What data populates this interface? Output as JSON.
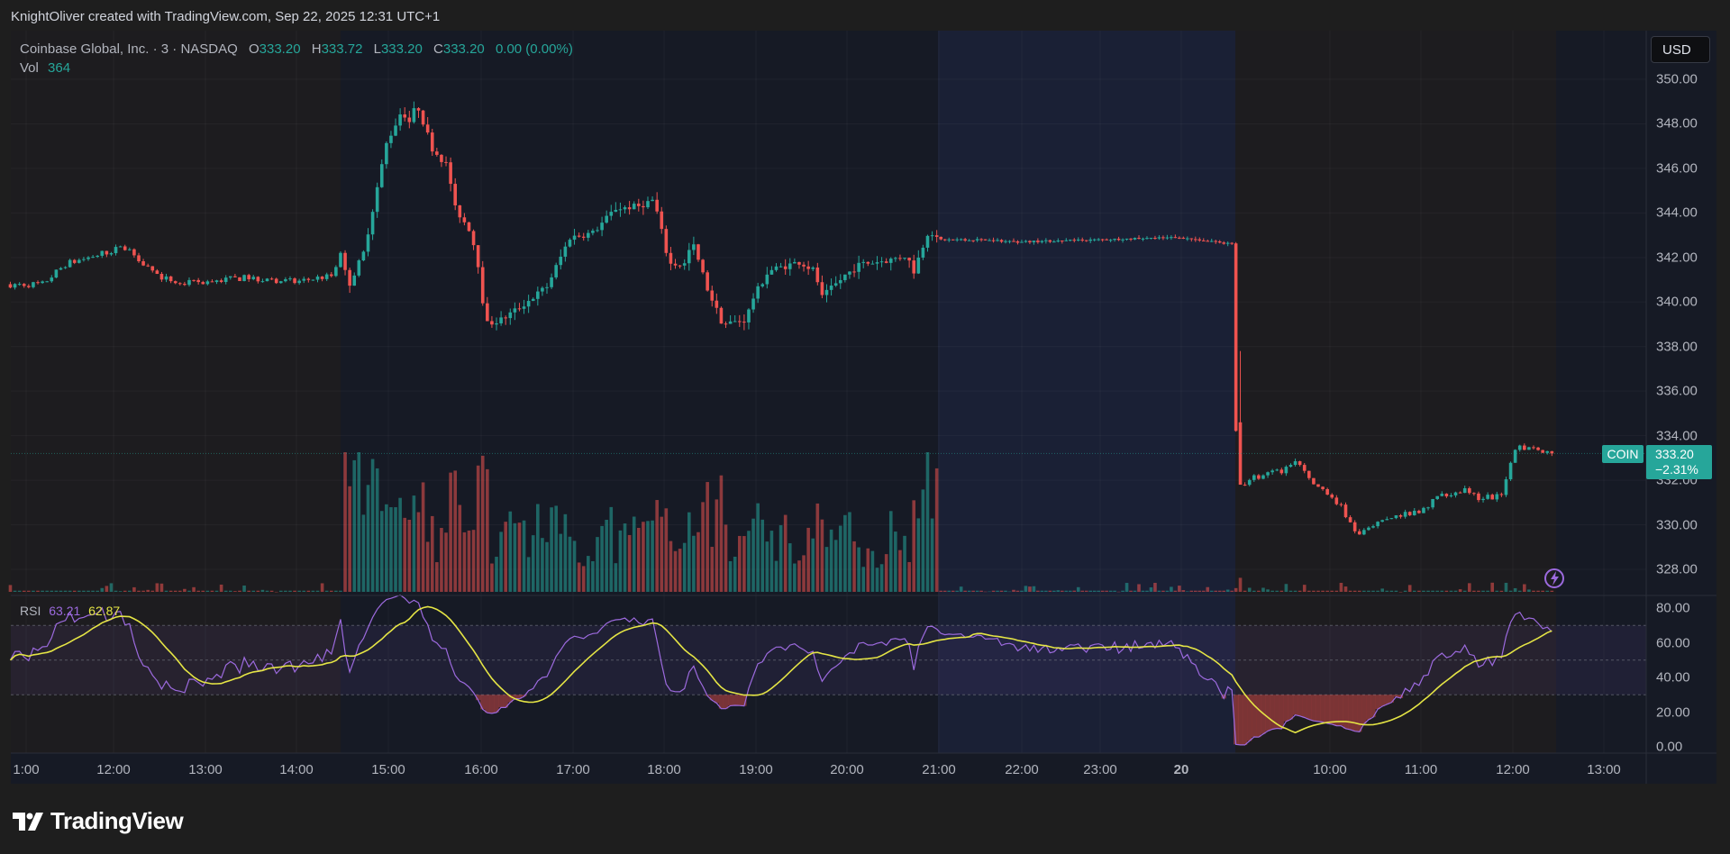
{
  "credit": "KnightOliver created with TradingView.com, Sep 22, 2025 12:31 UTC+1",
  "symbol": {
    "name": "Coinbase Global, Inc.",
    "interval": "3",
    "exchange": "NASDAQ",
    "ticker": "COIN"
  },
  "ohlc": {
    "o_label": "O",
    "o": "333.20",
    "h_label": "H",
    "h": "333.72",
    "l_label": "L",
    "l": "333.20",
    "c_label": "C",
    "c": "333.20",
    "change": "0.00 (0.00%)"
  },
  "volume": {
    "label": "Vol",
    "value": "364"
  },
  "currency": "USD",
  "last_price": {
    "price": "333.20",
    "change_pct": "−2.31%"
  },
  "rsi": {
    "label": "RSI",
    "value": "63.21",
    "ma_value": "62.87"
  },
  "colors": {
    "up": "#26a69a",
    "down": "#ef5350",
    "rsi": "#9c6ade",
    "rsi_ma": "#e5e545",
    "background": "#161a25"
  },
  "logo": "TradingView",
  "chart_data": [
    {
      "type": "candlestick",
      "title": "Coinbase Global, Inc. · 3 · NASDAQ",
      "ylim": [
        327,
        351
      ],
      "price_ticks": [
        "350.00",
        "348.00",
        "346.00",
        "344.00",
        "342.00",
        "340.00",
        "338.00",
        "336.00",
        "334.00",
        "332.00",
        "330.00",
        "328.00"
      ],
      "time_ticks": [
        "1:00",
        "12:00",
        "13:00",
        "14:00",
        "15:00",
        "16:00",
        "17:00",
        "18:00",
        "19:00",
        "20:00",
        "21:00",
        "22:00",
        "23:00",
        "20",
        "10:00",
        "11:00",
        "12:00",
        "13:00"
      ],
      "sessions": [
        {
          "name": "pre-market",
          "from": "10:50",
          "to": "14:30"
        },
        {
          "name": "regular",
          "from": "14:30",
          "to": "21:00"
        },
        {
          "name": "post-market",
          "from": "21:00",
          "to": "00:40"
        },
        {
          "name": "pre-market",
          "from": "09:00",
          "to": "12:30"
        }
      ],
      "approx_close_path": [
        [
          "19 10:50",
          340.8
        ],
        [
          "19 11:15",
          340.8
        ],
        [
          "19 11:30",
          341.7
        ],
        [
          "19 11:45",
          342.0
        ],
        [
          "19 12:00",
          342.3
        ],
        [
          "19 12:10",
          342.5
        ],
        [
          "19 12:30",
          341.2
        ],
        [
          "19 12:45",
          340.8
        ],
        [
          "19 13:00",
          340.9
        ],
        [
          "19 13:30",
          341.1
        ],
        [
          "19 14:00",
          340.9
        ],
        [
          "19 14:25",
          341.2
        ],
        [
          "19 14:30",
          342.3
        ],
        [
          "19 14:35",
          340.7
        ],
        [
          "19 14:45",
          342.2
        ],
        [
          "19 15:00",
          347.1
        ],
        [
          "19 15:10",
          348.6
        ],
        [
          "19 15:15",
          348.1
        ],
        [
          "19 15:20",
          348.9
        ],
        [
          "19 15:30",
          346.9
        ],
        [
          "19 15:40",
          346.1
        ],
        [
          "19 15:45",
          344.2
        ],
        [
          "19 15:55",
          343.2
        ],
        [
          "19 16:00",
          341.7
        ],
        [
          "19 16:05",
          339.0
        ],
        [
          "19 16:15",
          339.2
        ],
        [
          "19 16:30",
          339.9
        ],
        [
          "19 16:45",
          340.7
        ],
        [
          "19 17:00",
          342.9
        ],
        [
          "19 17:15",
          343.1
        ],
        [
          "19 17:30",
          344.2
        ],
        [
          "19 17:45",
          344.3
        ],
        [
          "19 17:55",
          344.6
        ],
        [
          "19 18:05",
          341.7
        ],
        [
          "19 18:15",
          341.7
        ],
        [
          "19 18:20",
          342.7
        ],
        [
          "19 18:30",
          340.6
        ],
        [
          "19 18:40",
          339.0
        ],
        [
          "19 18:55",
          339.2
        ],
        [
          "19 19:00",
          340.2
        ],
        [
          "19 19:10",
          341.4
        ],
        [
          "19 19:30",
          341.8
        ],
        [
          "19 19:40",
          341.4
        ],
        [
          "19 19:45",
          340.2
        ],
        [
          "19 20:00",
          341.2
        ],
        [
          "19 20:10",
          341.7
        ],
        [
          "19 20:30",
          341.9
        ],
        [
          "19 20:40",
          342.1
        ],
        [
          "19 20:45",
          341.4
        ],
        [
          "19 20:55",
          343.3
        ],
        [
          "19 21:00",
          342.8
        ],
        [
          "19 21:30",
          342.8
        ],
        [
          "19 22:00",
          342.7
        ],
        [
          "19 23:00",
          342.8
        ],
        [
          "20 00:00",
          342.9
        ],
        [
          "20 00:40",
          342.6
        ],
        [
          "20 09:00",
          334.2
        ],
        [
          "20 09:03",
          331.8
        ],
        [
          "20 09:15",
          332.2
        ],
        [
          "20 09:30",
          332.4
        ],
        [
          "20 09:40",
          332.8
        ],
        [
          "20 09:50",
          331.8
        ],
        [
          "20 10:00",
          331.5
        ],
        [
          "20 10:10",
          330.7
        ],
        [
          "20 10:20",
          329.5
        ],
        [
          "20 10:30",
          329.9
        ],
        [
          "20 10:45",
          330.4
        ],
        [
          "20 11:00",
          330.5
        ],
        [
          "20 11:15",
          331.4
        ],
        [
          "20 11:30",
          331.5
        ],
        [
          "20 11:40",
          331.2
        ],
        [
          "20 11:55",
          331.3
        ],
        [
          "20 12:00",
          332.8
        ],
        [
          "20 12:05",
          333.5
        ],
        [
          "20 12:15",
          333.5
        ],
        [
          "20 12:27",
          333.2
        ]
      ],
      "last_close": 333.2
    },
    {
      "type": "line",
      "title": "RSI",
      "ylim": [
        0,
        85
      ],
      "ticks": [
        "80.00",
        "60.00",
        "40.00",
        "20.00",
        "0.00"
      ],
      "bands": [
        30,
        50,
        70
      ],
      "series": [
        {
          "name": "RSI",
          "last": 63.21
        },
        {
          "name": "RSI-based MA",
          "last": 62.87
        }
      ]
    }
  ]
}
